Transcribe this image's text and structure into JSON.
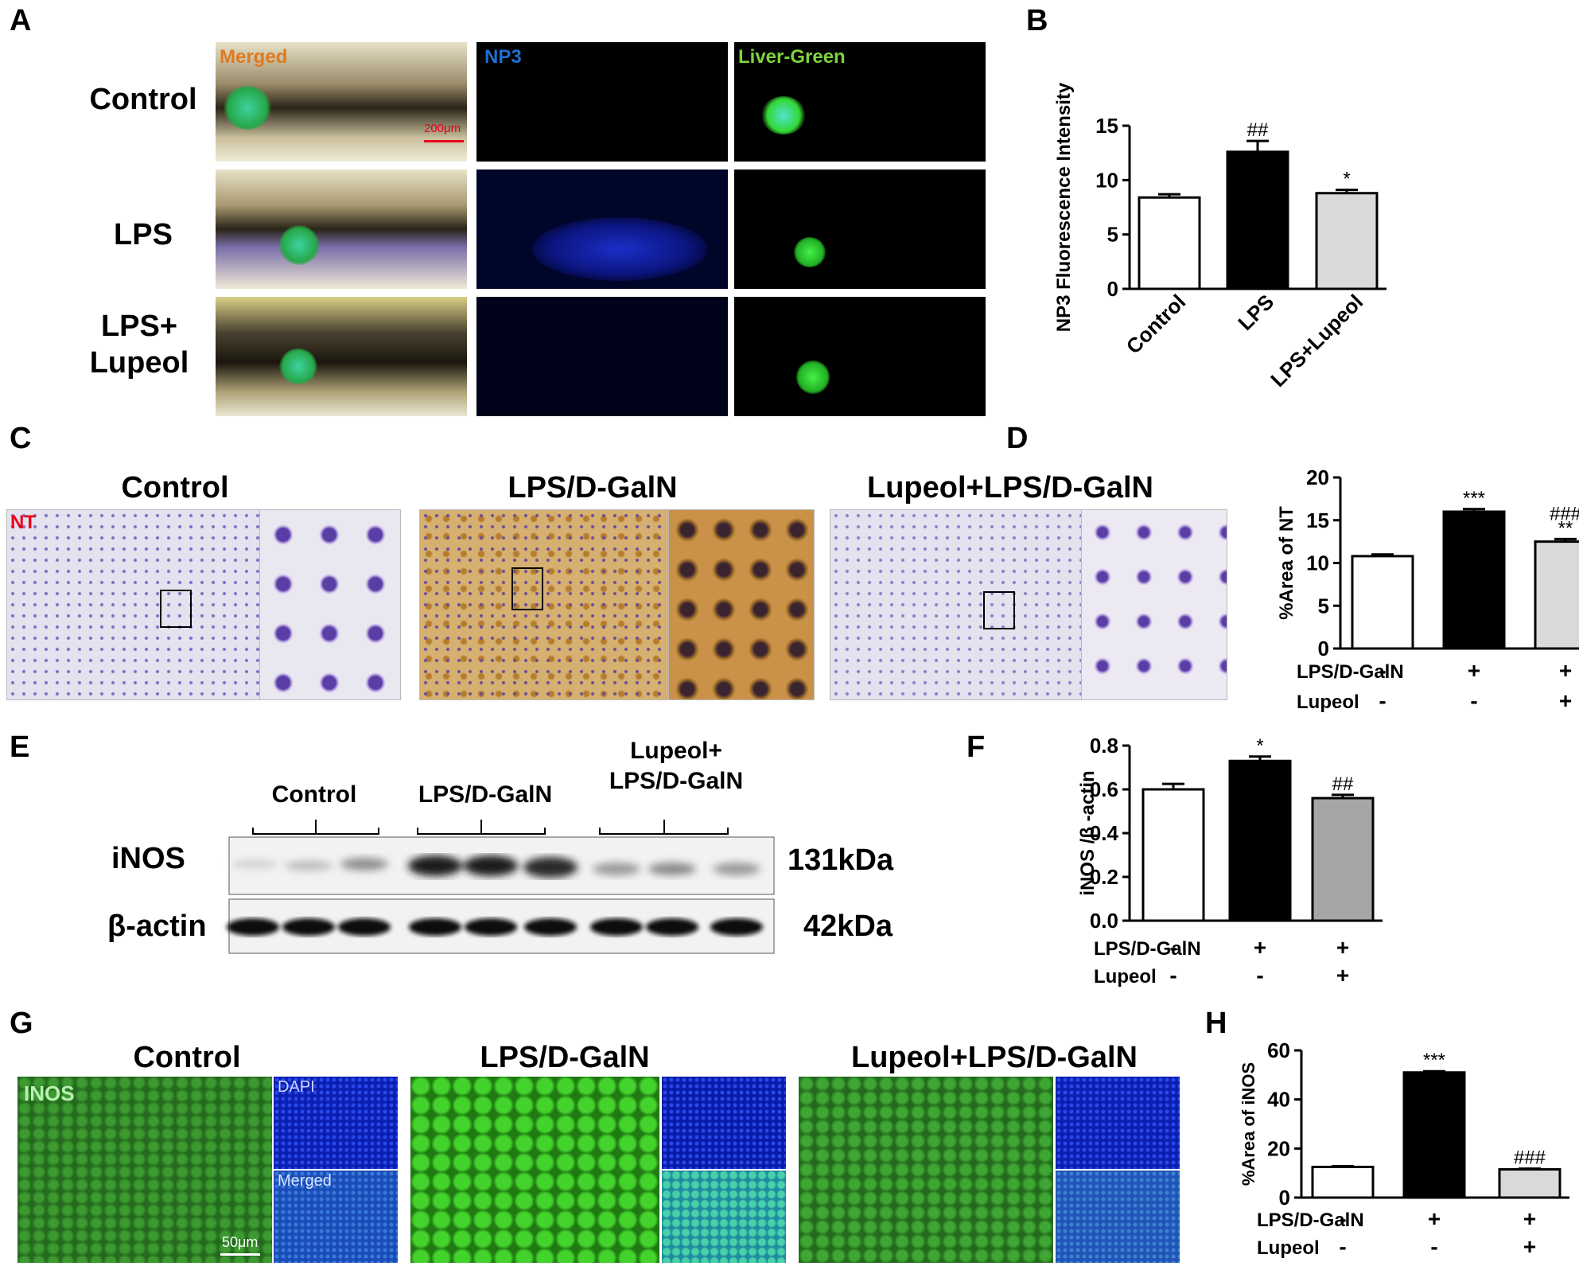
{
  "panels": {
    "A": "A",
    "B": "B",
    "C": "C",
    "D": "D",
    "E": "E",
    "F": "F",
    "G": "G",
    "H": "H"
  },
  "panel_a": {
    "rows": [
      "Control",
      "LPS",
      "LPS+\nLupeol"
    ],
    "cols": [
      "Merged",
      "NP3",
      "Liver-Green"
    ],
    "scalebar": "200μm"
  },
  "panel_c": {
    "titles": [
      "Control",
      "LPS/D-GalN",
      "Lupeol+LPS/D-GalN"
    ],
    "stain": "NT"
  },
  "panel_e": {
    "groups": [
      "Control",
      "LPS/D-GalN",
      "Lupeol+\nLPS/D-GalN"
    ],
    "bands": [
      "iNOS",
      "β-actin"
    ],
    "sizes": [
      "131kDa",
      "42kDa"
    ]
  },
  "panel_g": {
    "titles": [
      "Control",
      "LPS/D-GalN",
      "Lupeol+LPS/D-GalN"
    ],
    "channels": [
      "INOS",
      "DAPI",
      "Merged"
    ],
    "scalebar": "50μm"
  },
  "colors": {
    "white_bar": "#ffffff",
    "black_bar": "#000000",
    "gray_bar": "#d9d9d9",
    "gray_bar_f": "#a6a6a6",
    "nt_label": "#e8001c",
    "merged_label": "#e07a20",
    "np3_label": "#1e6fd0",
    "liver_label": "#7fd33a"
  },
  "chart_data": [
    {
      "id": "B",
      "type": "bar",
      "categories": [
        "Control",
        "LPS",
        "LPS+Lupeol"
      ],
      "values": [
        8.4,
        12.6,
        8.8
      ],
      "errors": [
        0.3,
        1.0,
        0.3
      ],
      "annotations": [
        "",
        "##",
        "*"
      ],
      "ylabel": "NP3 Fluorescence Intensity",
      "yticks": [
        0,
        5,
        10,
        15
      ],
      "ylim": [
        0,
        15
      ]
    },
    {
      "id": "D",
      "type": "bar",
      "values": [
        10.8,
        16.0,
        12.5
      ],
      "errors": [
        0.2,
        0.3,
        0.3
      ],
      "annotations": [
        "",
        "***",
        "###\n**"
      ],
      "ylabel": "%Area of NT",
      "yticks": [
        0,
        5,
        10,
        15,
        20
      ],
      "ylim": [
        0,
        20
      ],
      "conditions": [
        {
          "name": "LPS/D-GalN",
          "signs": [
            "-",
            "+",
            "+"
          ]
        },
        {
          "name": "Lupeol",
          "signs": [
            "-",
            "-",
            "+"
          ]
        }
      ]
    },
    {
      "id": "F",
      "type": "bar",
      "values": [
        0.6,
        0.73,
        0.56
      ],
      "errors": [
        0.025,
        0.02,
        0.015
      ],
      "annotations": [
        "",
        "*",
        "##"
      ],
      "ylabel": "iNOS /β -actin",
      "yticks": [
        "0.0",
        "0.2",
        "0.4",
        "0.6",
        "0.8"
      ],
      "ylim": [
        0,
        0.8
      ],
      "conditions": [
        {
          "name": "LPS/D-GalN",
          "signs": [
            "-",
            "+",
            "+"
          ]
        },
        {
          "name": "Lupeol",
          "signs": [
            "-",
            "-",
            "+"
          ]
        }
      ]
    },
    {
      "id": "H",
      "type": "bar",
      "values": [
        12.5,
        51,
        11.5
      ],
      "errors": [
        0.3,
        0.5,
        0.3
      ],
      "annotations": [
        "",
        "***",
        "###"
      ],
      "ylabel": "%Area of iNOS",
      "yticks": [
        0,
        20,
        40,
        60
      ],
      "ylim": [
        0,
        60
      ],
      "conditions": [
        {
          "name": "LPS/D-GalN",
          "signs": [
            "-",
            "+",
            "+"
          ]
        },
        {
          "name": "Lupeol",
          "signs": [
            "-",
            "-",
            "+"
          ]
        }
      ]
    }
  ]
}
